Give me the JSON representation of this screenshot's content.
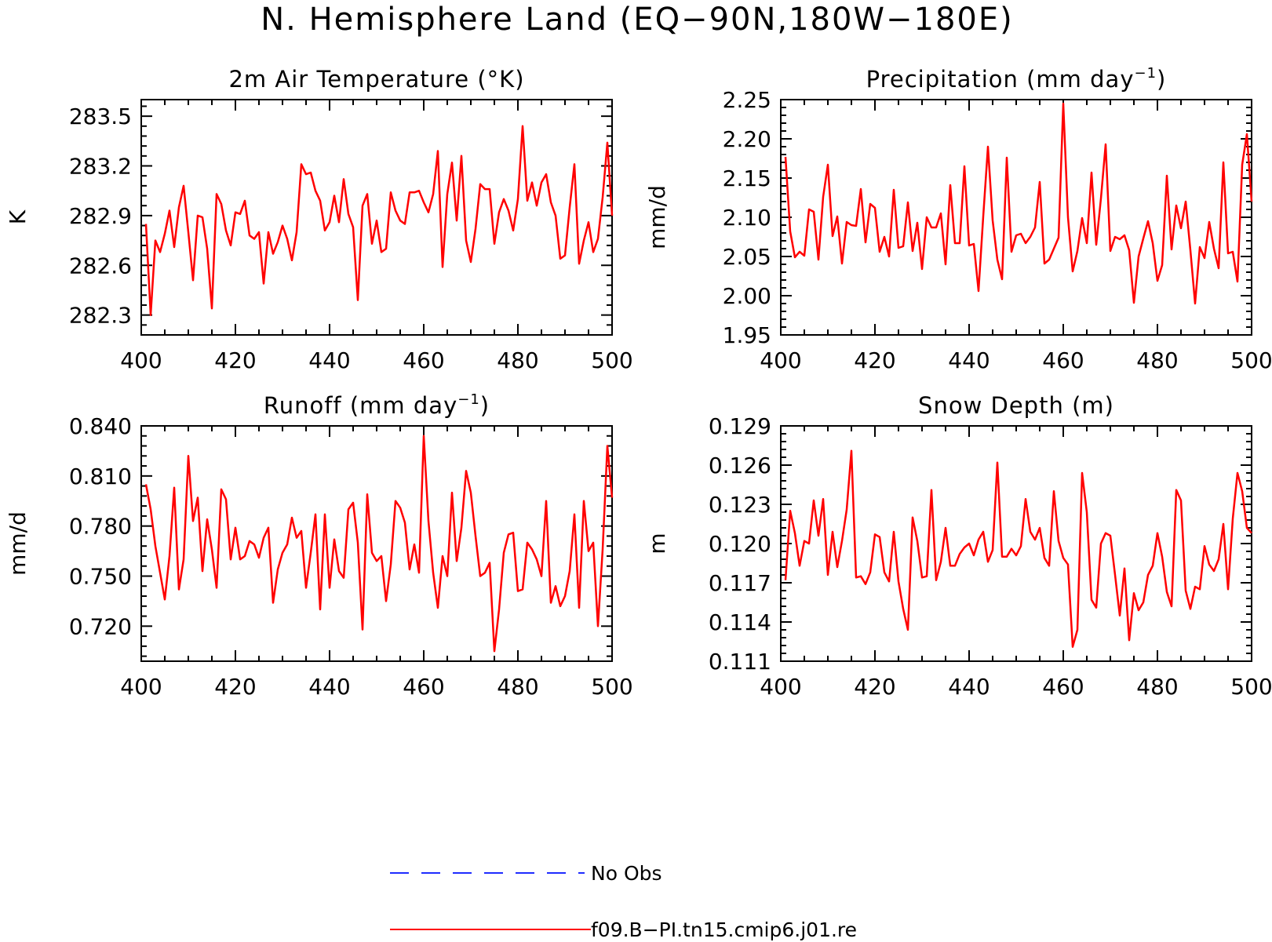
{
  "figure": {
    "title": "N. Hemisphere Land (EQ−90N,180W−180E)"
  },
  "legend": {
    "entries": [
      {
        "label": "No Obs",
        "color": "#1f2cff",
        "style": "dashed"
      },
      {
        "label": "f09.B−PI.tn15.cmip6.j01.re",
        "color": "#ff0000",
        "style": "solid"
      }
    ]
  },
  "chart_data": [
    {
      "type": "line",
      "title": "2m Air Temperature (°K)",
      "title_sup": "",
      "title_tail": "",
      "xlabel": "",
      "ylabel": "K",
      "xlim": [
        400,
        500
      ],
      "ylim": [
        282.18,
        283.6
      ],
      "xticks": [
        "400",
        "420",
        "440",
        "460",
        "480",
        "500"
      ],
      "yticks": [
        "282.3",
        "282.6",
        "282.9",
        "283.2",
        "283.5"
      ],
      "series": [
        {
          "color": "#ff0000",
          "x_start": 401,
          "values": [
            282.85,
            282.3,
            282.75,
            282.68,
            282.79,
            282.93,
            282.71,
            282.95,
            283.08,
            282.8,
            282.51,
            282.9,
            282.89,
            282.7,
            282.34,
            283.03,
            282.97,
            282.81,
            282.72,
            282.92,
            282.91,
            282.99,
            282.78,
            282.76,
            282.8,
            282.49,
            282.8,
            282.67,
            282.74,
            282.84,
            282.76,
            282.63,
            282.8,
            283.21,
            283.15,
            283.16,
            283.05,
            282.99,
            282.81,
            282.86,
            283.02,
            282.86,
            283.12,
            282.91,
            282.83,
            282.39,
            282.96,
            283.03,
            282.73,
            282.87,
            282.68,
            282.7,
            283.04,
            282.93,
            282.87,
            282.85,
            283.04,
            283.04,
            283.05,
            282.98,
            282.92,
            283.03,
            283.29,
            282.59,
            283.03,
            283.22,
            282.87,
            283.26,
            282.75,
            282.62,
            282.82,
            283.09,
            283.06,
            283.06,
            282.73,
            282.92,
            283.0,
            282.93,
            282.81,
            283.0,
            283.44,
            282.99,
            283.1,
            282.96,
            283.1,
            283.15,
            282.98,
            282.9,
            282.64,
            282.66,
            282.95,
            283.21,
            282.61,
            282.75,
            282.86,
            282.68,
            282.76,
            283.01,
            283.34,
            282.9
          ]
        }
      ]
    },
    {
      "type": "line",
      "title": "Precipitation (mm day",
      "title_sup": "−1",
      "title_tail": ")",
      "xlabel": "",
      "ylabel": "mm/d",
      "xlim": [
        400,
        500
      ],
      "ylim": [
        1.95,
        2.25
      ],
      "xticks": [
        "400",
        "420",
        "440",
        "460",
        "480",
        "500"
      ],
      "yticks": [
        "1.95",
        "2.00",
        "2.05",
        "2.10",
        "2.15",
        "2.20",
        "2.25"
      ],
      "series": [
        {
          "color": "#ff0000",
          "x_start": 401,
          "values": [
            2.177,
            2.082,
            2.049,
            2.056,
            2.051,
            2.11,
            2.107,
            2.046,
            2.126,
            2.167,
            2.076,
            2.101,
            2.041,
            2.094,
            2.09,
            2.089,
            2.136,
            2.068,
            2.117,
            2.112,
            2.056,
            2.075,
            2.05,
            2.135,
            2.061,
            2.063,
            2.119,
            2.057,
            2.093,
            2.034,
            2.1,
            2.087,
            2.087,
            2.105,
            2.04,
            2.141,
            2.067,
            2.067,
            2.165,
            2.064,
            2.066,
            2.006,
            2.101,
            2.19,
            2.096,
            2.046,
            2.021,
            2.176,
            2.056,
            2.077,
            2.079,
            2.067,
            2.075,
            2.087,
            2.145,
            2.041,
            2.046,
            2.06,
            2.074,
            2.245,
            2.1,
            2.031,
            2.057,
            2.099,
            2.067,
            2.157,
            2.065,
            2.124,
            2.193,
            2.057,
            2.075,
            2.072,
            2.077,
            2.058,
            1.991,
            2.05,
            2.073,
            2.095,
            2.067,
            2.019,
            2.039,
            2.153,
            2.059,
            2.115,
            2.086,
            2.12,
            2.058,
            1.99,
            2.062,
            2.048,
            2.094,
            2.06,
            2.035,
            2.17,
            2.054,
            2.056,
            2.018,
            2.167,
            2.206,
            2.12
          ]
        }
      ]
    },
    {
      "type": "line",
      "title": "Runoff (mm day",
      "title_sup": "−1",
      "title_tail": ")",
      "xlabel": "",
      "ylabel": "mm/d",
      "xlim": [
        400,
        500
      ],
      "ylim": [
        0.699,
        0.84
      ],
      "xticks": [
        "400",
        "420",
        "440",
        "460",
        "480",
        "500"
      ],
      "yticks": [
        "0.720",
        "0.750",
        "0.780",
        "0.810",
        "0.840"
      ],
      "series": [
        {
          "color": "#ff0000",
          "x_start": 401,
          "values": [
            0.805,
            0.79,
            0.768,
            0.752,
            0.736,
            0.762,
            0.803,
            0.742,
            0.76,
            0.822,
            0.783,
            0.797,
            0.753,
            0.784,
            0.766,
            0.743,
            0.802,
            0.796,
            0.76,
            0.779,
            0.76,
            0.762,
            0.771,
            0.769,
            0.761,
            0.773,
            0.779,
            0.734,
            0.754,
            0.764,
            0.769,
            0.785,
            0.773,
            0.777,
            0.743,
            0.764,
            0.787,
            0.73,
            0.787,
            0.743,
            0.772,
            0.753,
            0.749,
            0.79,
            0.794,
            0.77,
            0.718,
            0.799,
            0.764,
            0.759,
            0.762,
            0.735,
            0.757,
            0.795,
            0.791,
            0.782,
            0.754,
            0.769,
            0.752,
            0.834,
            0.783,
            0.752,
            0.731,
            0.762,
            0.75,
            0.8,
            0.759,
            0.779,
            0.813,
            0.8,
            0.774,
            0.75,
            0.752,
            0.758,
            0.705,
            0.73,
            0.764,
            0.775,
            0.776,
            0.741,
            0.742,
            0.77,
            0.766,
            0.76,
            0.75,
            0.795,
            0.734,
            0.744,
            0.732,
            0.738,
            0.753,
            0.787,
            0.731,
            0.795,
            0.765,
            0.77,
            0.72,
            0.766,
            0.828,
            0.797
          ]
        }
      ]
    },
    {
      "type": "line",
      "title": "Snow Depth (m)",
      "title_sup": "",
      "title_tail": "",
      "xlabel": "",
      "ylabel": "m",
      "xlim": [
        400,
        500
      ],
      "ylim": [
        0.111,
        0.129
      ],
      "xticks": [
        "400",
        "420",
        "440",
        "460",
        "480",
        "500"
      ],
      "yticks": [
        "0.111",
        "0.114",
        "0.117",
        "0.120",
        "0.123",
        "0.126",
        "0.129"
      ],
      "series": [
        {
          "color": "#ff0000",
          "x_start": 401,
          "values": [
            0.1172,
            0.1225,
            0.1208,
            0.1183,
            0.1202,
            0.12,
            0.1233,
            0.1206,
            0.1234,
            0.1176,
            0.1209,
            0.1182,
            0.1202,
            0.1226,
            0.1271,
            0.1174,
            0.1175,
            0.1169,
            0.1178,
            0.1207,
            0.1205,
            0.1178,
            0.1171,
            0.1209,
            0.1171,
            0.115,
            0.1134,
            0.122,
            0.1202,
            0.1174,
            0.1175,
            0.1241,
            0.1172,
            0.1186,
            0.1212,
            0.1183,
            0.1183,
            0.1192,
            0.1197,
            0.12,
            0.1191,
            0.1203,
            0.1209,
            0.1186,
            0.1195,
            0.1262,
            0.119,
            0.119,
            0.1196,
            0.1191,
            0.1198,
            0.1234,
            0.1209,
            0.1203,
            0.1212,
            0.1189,
            0.1183,
            0.124,
            0.1202,
            0.1189,
            0.1184,
            0.1121,
            0.1134,
            0.1254,
            0.1224,
            0.1157,
            0.1151,
            0.12,
            0.1208,
            0.1206,
            0.1176,
            0.1145,
            0.1181,
            0.1126,
            0.1162,
            0.1149,
            0.1155,
            0.1176,
            0.1183,
            0.1208,
            0.119,
            0.1163,
            0.1152,
            0.1241,
            0.1233,
            0.1164,
            0.115,
            0.1167,
            0.1165,
            0.1198,
            0.1184,
            0.1179,
            0.1188,
            0.1215,
            0.1165,
            0.1219,
            0.1254,
            0.124,
            0.1212,
            0.1208
          ]
        }
      ]
    }
  ]
}
